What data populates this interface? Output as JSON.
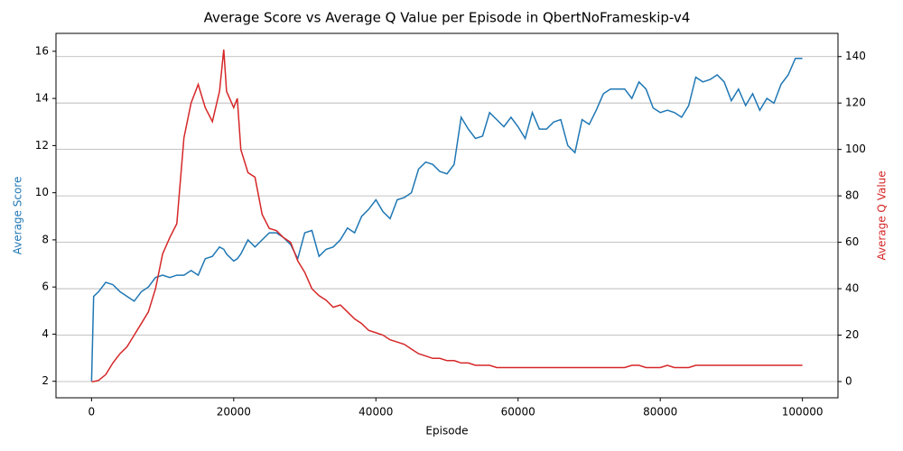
{
  "chart_data": {
    "type": "line",
    "title": "Average Score vs Average Q Value per Episode in QbertNoFrameskip-v4",
    "x_label": "Episode",
    "y_label": "Average Score",
    "y2_label": "Average Q Value",
    "y_color": "#1f77b4",
    "y2_color": "#d62728",
    "x": [
      0,
      300,
      1000,
      2000,
      3000,
      4000,
      5000,
      6000,
      7000,
      8000,
      9000,
      10000,
      11000,
      12000,
      13000,
      14000,
      15000,
      16000,
      17000,
      18000,
      18600,
      19000,
      20000,
      20500,
      21000,
      22000,
      23000,
      24000,
      25000,
      26000,
      27000,
      28000,
      29000,
      30000,
      31000,
      32000,
      33000,
      34000,
      35000,
      36000,
      37000,
      38000,
      39000,
      40000,
      41000,
      42000,
      43000,
      44000,
      45000,
      46000,
      47000,
      48000,
      49000,
      50000,
      51000,
      52000,
      53000,
      54000,
      55000,
      56000,
      57000,
      58000,
      59000,
      60000,
      61000,
      62000,
      63000,
      64000,
      65000,
      66000,
      67000,
      68000,
      69000,
      70000,
      71000,
      72000,
      73000,
      74000,
      75000,
      76000,
      77000,
      78000,
      79000,
      80000,
      81000,
      82000,
      83000,
      84000,
      85000,
      86000,
      87000,
      88000,
      89000,
      90000,
      91000,
      92000,
      93000,
      94000,
      95000,
      96000,
      97000,
      98000,
      99000,
      100000
    ],
    "series": [
      {
        "color": "#1f77b4",
        "axis": "y",
        "values": [
          2.0,
          5.6,
          5.8,
          6.2,
          6.1,
          5.8,
          5.6,
          5.4,
          5.8,
          6.0,
          6.4,
          6.5,
          6.4,
          6.5,
          6.5,
          6.7,
          6.5,
          7.2,
          7.3,
          7.7,
          7.6,
          7.4,
          7.1,
          7.2,
          7.4,
          8.0,
          7.7,
          8.0,
          8.3,
          8.3,
          8.1,
          7.8,
          7.2,
          8.3,
          8.4,
          7.3,
          7.6,
          7.7,
          8.0,
          8.5,
          8.3,
          9.0,
          9.3,
          9.7,
          9.2,
          8.9,
          9.7,
          9.8,
          10.0,
          11.0,
          11.3,
          11.2,
          10.9,
          10.8,
          11.2,
          13.2,
          12.7,
          12.3,
          12.4,
          13.4,
          13.1,
          12.8,
          13.2,
          12.8,
          12.3,
          13.4,
          12.7,
          12.7,
          13.0,
          13.1,
          12.0,
          11.7,
          13.1,
          12.9,
          13.5,
          14.2,
          14.4,
          14.4,
          14.4,
          14.0,
          14.7,
          14.4,
          13.6,
          13.4,
          13.5,
          13.4,
          13.2,
          13.7,
          14.9,
          14.7,
          14.8,
          15.0,
          14.7,
          13.9,
          14.4,
          13.7,
          14.2,
          13.5,
          14.0,
          13.8,
          14.6,
          15.0,
          15.7,
          15.7
        ]
      },
      {
        "color": "#d62728",
        "axis": "y2",
        "values": [
          0,
          0,
          0.5,
          3,
          8,
          12,
          15,
          20,
          25,
          30,
          40,
          55,
          62,
          68,
          105,
          120,
          128,
          118,
          112,
          125,
          143,
          125,
          118,
          122,
          100,
          90,
          88,
          72,
          66,
          65,
          62,
          60,
          52,
          47,
          40,
          37,
          35,
          32,
          33,
          30,
          27,
          25,
          22,
          21,
          20,
          18,
          17,
          16,
          14,
          12,
          11,
          10,
          10,
          9,
          9,
          8,
          8,
          7,
          7,
          7,
          6,
          6,
          6,
          6,
          6,
          6,
          6,
          6,
          6,
          6,
          6,
          6,
          6,
          6,
          6,
          6,
          6,
          6,
          6,
          7,
          7,
          6,
          6,
          6,
          7,
          6,
          6,
          6,
          7,
          7,
          7,
          7,
          7,
          7,
          7,
          7,
          7,
          7,
          7,
          7,
          7,
          7,
          7,
          7
        ]
      }
    ],
    "xlim": [
      -5000,
      105000
    ],
    "xticks": [
      0,
      20000,
      40000,
      60000,
      80000,
      100000
    ],
    "ylim": [
      1.3,
      16.76
    ],
    "yticks": [
      2,
      4,
      6,
      8,
      10,
      12,
      14,
      16
    ],
    "y2lim": [
      -7,
      150
    ],
    "y2ticks": [
      0,
      20,
      40,
      60,
      80,
      100,
      120,
      140
    ],
    "grid": "y2"
  }
}
